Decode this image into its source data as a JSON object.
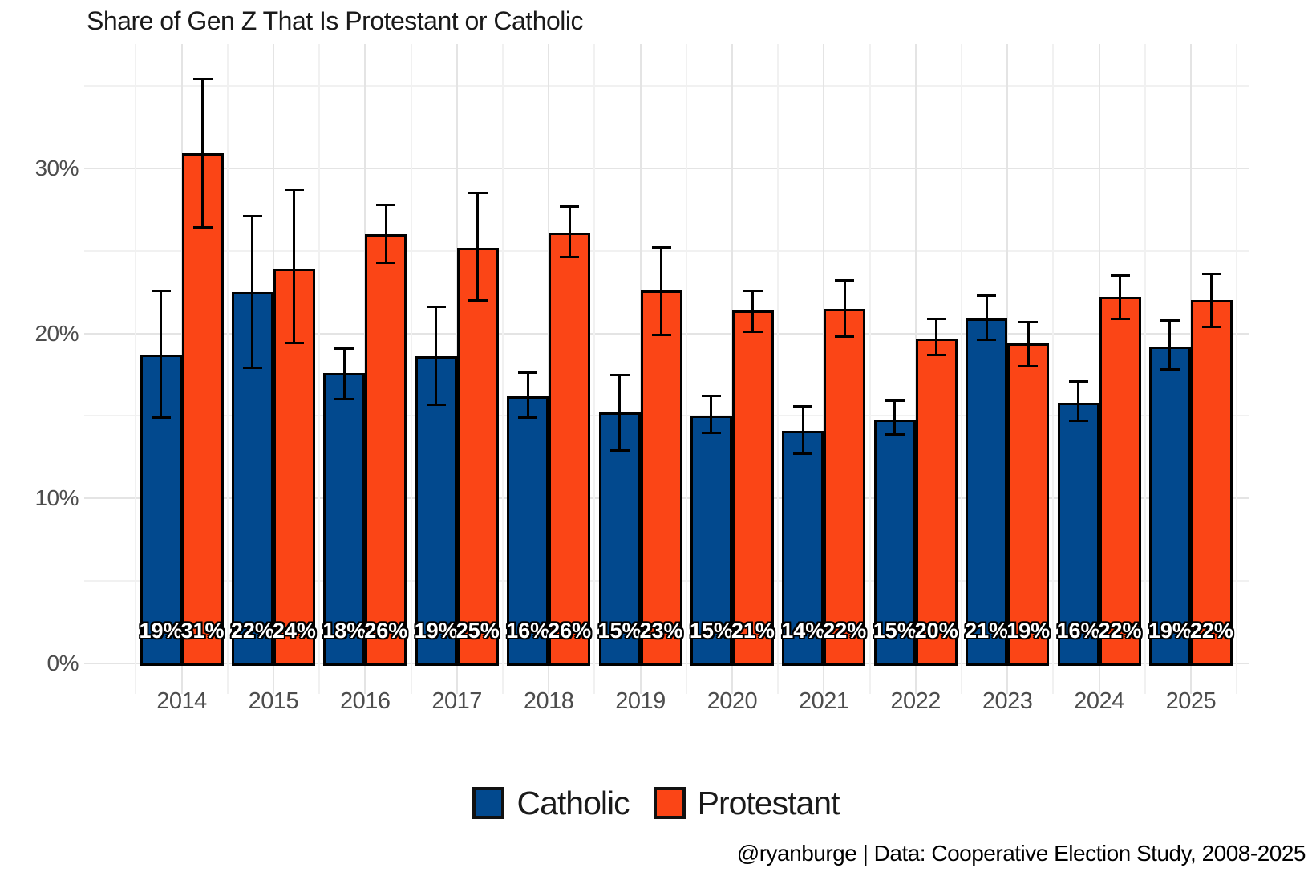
{
  "title": "Share of Gen Z That Is Protestant or Catholic",
  "caption": "@ryanburge | Data: Cooperative Election Study, 2008-2025",
  "colors": {
    "catholic": "#02498E",
    "protestant": "#FB4516",
    "bar_outline": "#000000",
    "grid_major": "#e4e4e4",
    "grid_minor": "#f1f1f1",
    "axis_text": "#4d4d4d",
    "title_text": "#1a1a1a"
  },
  "legend": {
    "items": [
      {
        "label": "Catholic",
        "color": "#02498E"
      },
      {
        "label": "Protestant",
        "color": "#FB4516"
      }
    ]
  },
  "chart_data": {
    "type": "bar",
    "title": "Share of Gen Z That Is Protestant or Catholic",
    "xlabel": "",
    "ylabel": "",
    "categories": [
      "2014",
      "2015",
      "2016",
      "2017",
      "2018",
      "2019",
      "2020",
      "2021",
      "2022",
      "2023",
      "2024",
      "2025"
    ],
    "series": [
      {
        "name": "Catholic",
        "color": "#02498E",
        "values": [
          18.7,
          22.5,
          17.6,
          18.6,
          16.2,
          15.2,
          15.0,
          14.1,
          14.8,
          20.9,
          15.8,
          19.2
        ],
        "ci_low": [
          14.9,
          17.9,
          16.0,
          15.7,
          14.9,
          12.9,
          14.0,
          12.7,
          13.9,
          19.6,
          14.7,
          17.8
        ],
        "ci_high": [
          22.6,
          27.1,
          19.1,
          21.6,
          17.6,
          17.5,
          16.2,
          15.6,
          15.9,
          22.3,
          17.1,
          20.8
        ],
        "labels": [
          "19%",
          "22%",
          "18%",
          "19%",
          "16%",
          "15%",
          "15%",
          "14%",
          "15%",
          "21%",
          "16%",
          "19%"
        ]
      },
      {
        "name": "Protestant",
        "color": "#FB4516",
        "values": [
          30.9,
          23.9,
          26.0,
          25.2,
          26.1,
          22.6,
          21.4,
          21.5,
          19.7,
          19.4,
          22.2,
          22.0
        ],
        "ci_low": [
          26.4,
          19.4,
          24.3,
          22.0,
          24.6,
          19.9,
          20.1,
          19.8,
          18.7,
          18.0,
          20.9,
          20.4
        ],
        "ci_high": [
          35.4,
          28.7,
          27.8,
          28.5,
          27.7,
          25.2,
          22.6,
          23.2,
          20.9,
          20.7,
          23.5,
          23.6
        ],
        "labels": [
          "31%",
          "24%",
          "26%",
          "25%",
          "26%",
          "23%",
          "21%",
          "22%",
          "20%",
          "19%",
          "22%",
          "22%"
        ]
      }
    ],
    "y_ticks_major": [
      0,
      10,
      20,
      30
    ],
    "y_ticks_minor": [
      5,
      15,
      25,
      35
    ],
    "y_tick_suffix": "%",
    "ylim": [
      0,
      37.5
    ],
    "grid": true,
    "error_bars": true,
    "legend_position": "bottom"
  }
}
